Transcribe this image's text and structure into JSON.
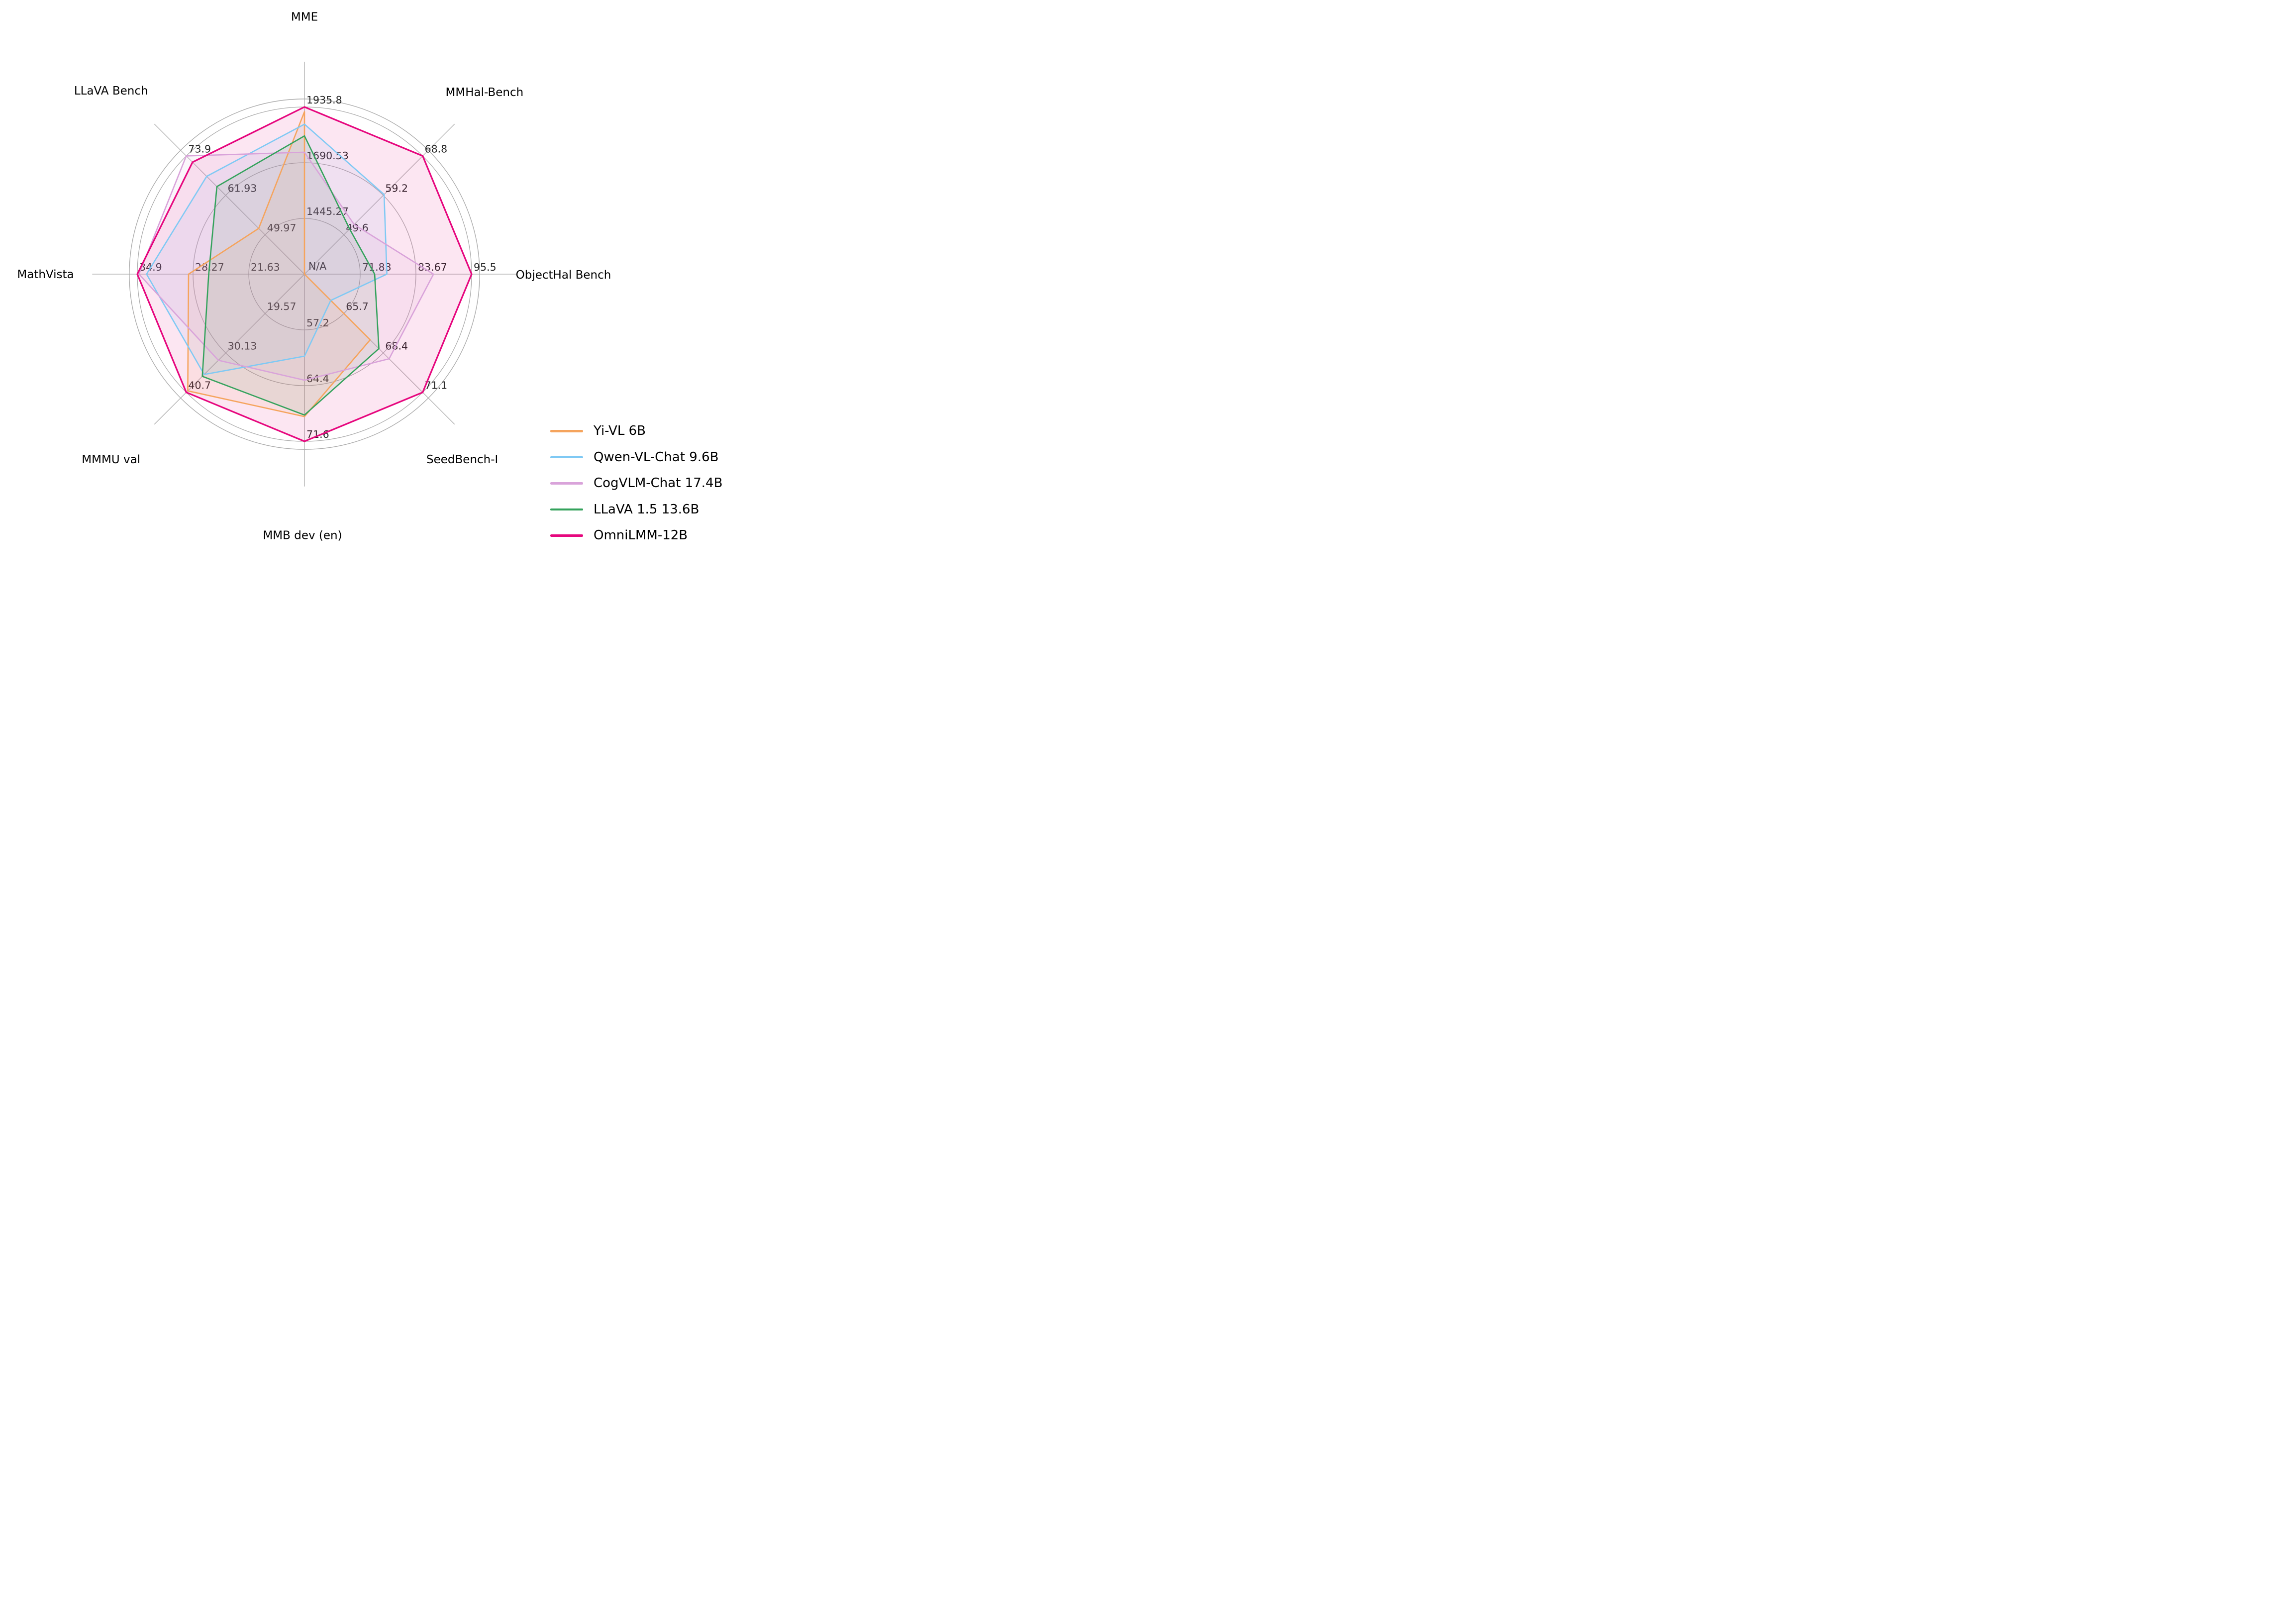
{
  "page": {
    "background": "#ffffff"
  },
  "chart_data": {
    "type": "radar",
    "title": "",
    "legend_position": "lower right",
    "grid": {
      "color": "#ababab",
      "rings": 3,
      "ring_fractions": [
        0.3333,
        0.6667,
        1.0
      ],
      "boundary_fraction": 1.048,
      "spoke_fraction": 1.27
    },
    "text_colors": {
      "tick_label": "#262626",
      "axis_title": "#000000"
    },
    "missing_value_label": "N/A",
    "fill_opacity": 0.1,
    "axes": [
      {
        "label": "MME",
        "angle_deg": 90,
        "min": 1200,
        "max": 1935.8,
        "ticks": [
          "1445.27",
          "1690.53",
          "1935.8"
        ],
        "title_offset": [
          0,
          -1.537
        ]
      },
      {
        "label": "MMHal-Bench",
        "angle_deg": 45,
        "min": 40,
        "max": 68.8,
        "ticks": [
          "49.6",
          "59.2",
          "68.8"
        ],
        "title_offset": [
          1.077,
          -1.086
        ]
      },
      {
        "label": "ObjectHal Bench",
        "angle_deg": 0,
        "min": 60,
        "max": 95.5,
        "ticks": [
          "71.83",
          "83.67",
          "95.5"
        ],
        "center_label": "N/A",
        "title_offset": [
          1.549,
          0.006
        ]
      },
      {
        "label": "SeedBench-I",
        "angle_deg": -45,
        "min": 63,
        "max": 71.1,
        "ticks": [
          "65.7",
          "68.4",
          "71.1"
        ],
        "title_offset": [
          0.944,
          1.11
        ]
      },
      {
        "label": "MMB dev (en)",
        "angle_deg": -90,
        "min": 50,
        "max": 71.6,
        "ticks": [
          "57.2",
          "64.4",
          "71.6"
        ],
        "title_offset": [
          -0.012,
          1.564
        ]
      },
      {
        "label": "MMMU val",
        "angle_deg": -135,
        "min": 9,
        "max": 40.7,
        "ticks": [
          "19.57",
          "30.13",
          "40.7"
        ],
        "title_offset": [
          -1.157,
          1.11
        ]
      },
      {
        "label": "MathVista",
        "angle_deg": 180,
        "min": 15,
        "max": 34.9,
        "ticks": [
          "21.63",
          "28.27",
          "34.9"
        ],
        "title_offset": [
          -1.549,
          0.003
        ]
      },
      {
        "label": "LLaVA Bench",
        "angle_deg": 135,
        "min": 38,
        "max": 73.9,
        "ticks": [
          "49.97",
          "61.93",
          "73.9"
        ],
        "title_offset": [
          -1.157,
          -1.095
        ]
      }
    ],
    "series": [
      {
        "name": "Yi-VL 6B",
        "color": "#F5A45D",
        "values": [
          1915.1,
          null,
          null,
          67.5,
          68.4,
          40.3,
          28.8,
          51.9
        ]
      },
      {
        "name": "Qwen-VL-Chat 9.6B",
        "color": "#7FC9F4",
        "values": [
          1860.0,
          59.4,
          77.5,
          64.8,
          60.6,
          35.9,
          33.8,
          67.7
        ]
      },
      {
        "name": "CogVLM-Chat 17.4B",
        "color": "#D9A3DA",
        "values": [
          1736.6,
          52.1,
          87.4,
          68.8,
          63.7,
          32.1,
          34.7,
          73.9
        ]
      },
      {
        "name": "LLaVA 1.5 13.6B",
        "color": "#34A25C",
        "values": [
          1808.4,
          51.0,
          74.9,
          68.1,
          68.2,
          36.4,
          26.4,
          64.6
        ]
      },
      {
        "name": "OmniLMM-12B",
        "color": "#E6077E",
        "values": [
          1935.8,
          68.8,
          95.5,
          71.1,
          71.6,
          40.7,
          34.9,
          72.0
        ]
      }
    ]
  }
}
